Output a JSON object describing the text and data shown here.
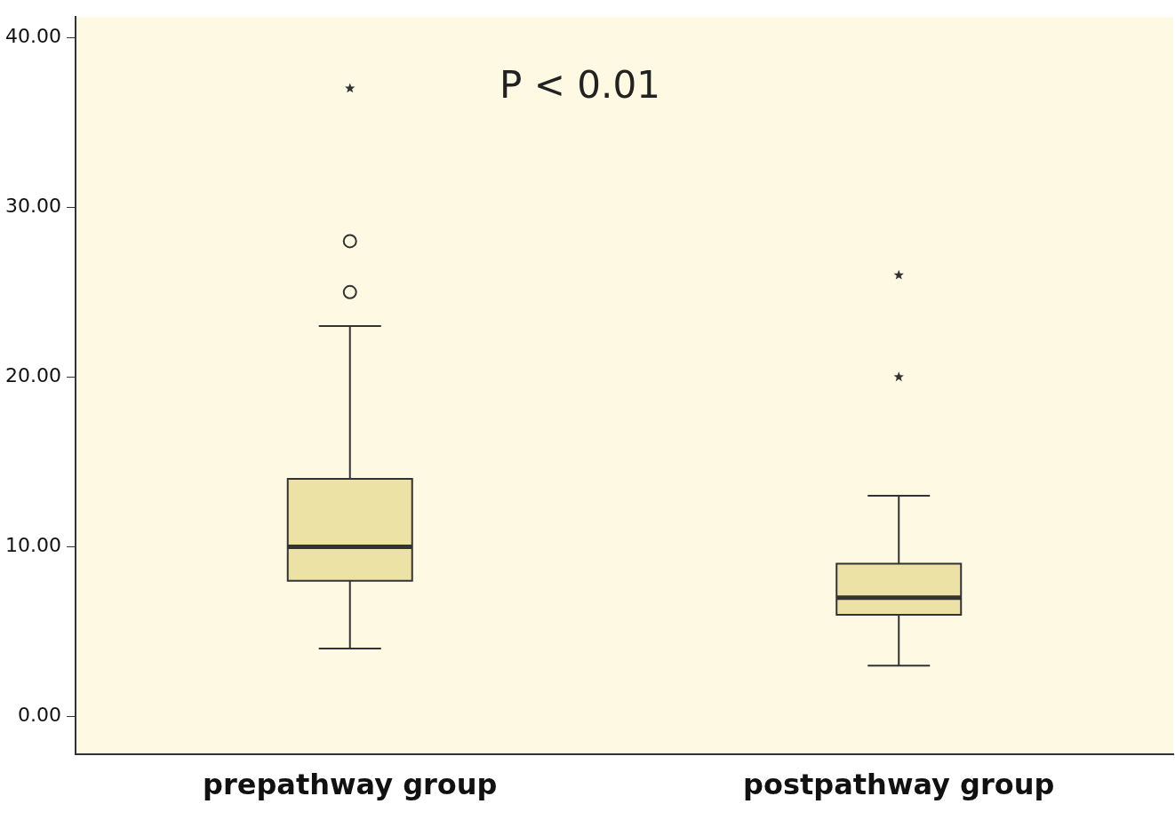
{
  "chart_data": {
    "type": "box",
    "categories": [
      "prepathway group",
      "postpathway group"
    ],
    "series": [
      {
        "color": "#ece2a6",
        "boxes": [
          {
            "low": 4,
            "q1": 8,
            "median": 10,
            "q3": 14,
            "high": 23,
            "outliers": [
              25,
              28,
              37
            ]
          },
          {
            "low": 3,
            "q1": 6,
            "median": 7,
            "q3": 9,
            "high": 13,
            "outliers": [
              20,
              26
            ]
          }
        ]
      }
    ],
    "ylim": [
      -2.2,
      41.2
    ],
    "yticks": [
      {
        "value": 0,
        "label": "0.00"
      },
      {
        "value": 10,
        "label": "10.00"
      },
      {
        "value": 20,
        "label": "20.00"
      },
      {
        "value": 30,
        "label": "30.00"
      },
      {
        "value": 40,
        "label": "40.00"
      }
    ],
    "annotations": [
      "P < 0.01"
    ],
    "grid": false
  }
}
